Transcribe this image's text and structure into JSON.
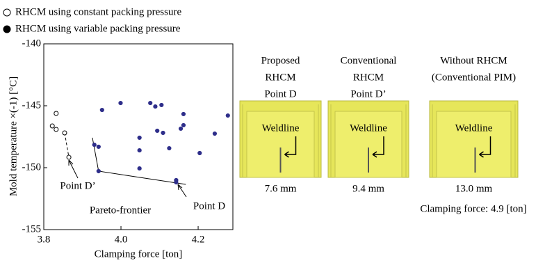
{
  "chart_data": {
    "type": "scatter",
    "xlabel": "Clamping force [ton]",
    "ylabel": "Mold temperature ×(-1) [°C]",
    "xlim": [
      3.8,
      4.29
    ],
    "ylim": [
      -155,
      -140
    ],
    "xticks": [
      3.8,
      {
        "value": 4,
        "label": "4.0"
      },
      4.2
    ],
    "yticks": [
      -140,
      -145,
      -150,
      -155
    ],
    "series": [
      {
        "name": "RHCM using constant packing pressure",
        "marker": "open",
        "color": "#000000",
        "x": [
          3.832,
          3.822,
          3.832,
          3.854,
          3.865
        ],
        "values": [
          -145.62,
          -146.63,
          -146.91,
          -147.19,
          -149.16
        ]
      },
      {
        "name": "RHCM using variable packing pressure",
        "marker": "filled",
        "color": "#2e2e8a",
        "x": [
          3.951,
          3.999,
          4.076,
          4.089,
          4.105,
          4.162,
          4.162,
          4.277,
          3.931,
          3.942,
          3.942,
          4.048,
          4.048,
          4.048,
          4.094,
          4.109,
          4.125,
          4.155,
          4.243,
          4.204,
          4.143,
          4.143
        ],
        "values": [
          -145.34,
          -144.78,
          -144.78,
          -145.06,
          -144.94,
          -145.67,
          -146.57,
          -145.79,
          -148.15,
          -148.31,
          -150.28,
          -147.58,
          -148.6,
          -150.06,
          -147.02,
          -147.19,
          -148.43,
          -146.85,
          -147.25,
          -148.82,
          -151.01,
          -151.18
        ]
      }
    ],
    "lines": [
      {
        "dash": true,
        "x": [
          3.854,
          3.865
        ],
        "values": [
          -147.19,
          -149.16
        ]
      },
      {
        "dash": false,
        "x": [
          3.926,
          3.942,
          4.168
        ],
        "values": [
          -147.58,
          -150.28,
          -151.35
        ]
      }
    ],
    "annotations": [
      "Point D’",
      "Pareto-frontier",
      "Point D"
    ]
  },
  "panels": [
    {
      "title": [
        "Proposed",
        "RHCM",
        "Point D"
      ],
      "label": "Weldline",
      "measure": "7.6 mm"
    },
    {
      "title": [
        "Conventional",
        "RHCM",
        "Point D’"
      ],
      "label": "Weldline",
      "measure": "9.4 mm"
    },
    {
      "title": [
        "Without RHCM",
        "(Conventional PIM)"
      ],
      "label": "Weldline",
      "measure": "13.0 mm"
    }
  ],
  "footer": "Clamping force: 4.9 [ton]"
}
